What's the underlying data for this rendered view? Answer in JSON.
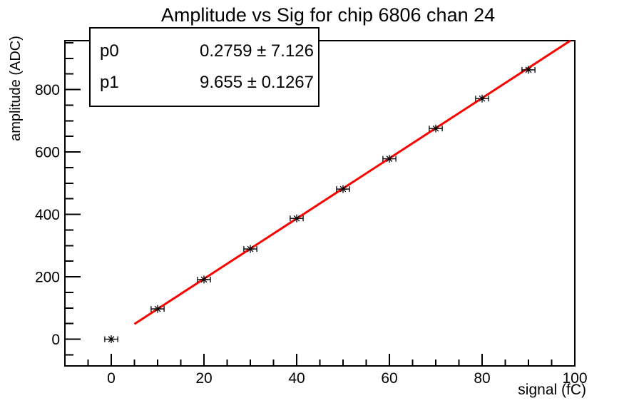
{
  "chart_data": {
    "type": "scatter",
    "title": "Amplitude vs Sig for chip 6806 chan 24",
    "xlabel": "signal (fC)",
    "ylabel": "amplitude (ADC)",
    "x": [
      0,
      10,
      20,
      30,
      40,
      50,
      60,
      70,
      80,
      90
    ],
    "y": [
      0,
      97,
      191,
      289,
      387,
      481,
      578,
      675,
      771,
      863
    ],
    "x_err": 1.4,
    "marker": "asterisk-with-x-error-bars",
    "marker_color": "#000000",
    "fit": {
      "model": "linear y = p0 + p1*x",
      "p0": 0.2759,
      "p1": 9.655,
      "range": [
        5,
        100
      ],
      "color": "#ff0000"
    },
    "stats": {
      "rows": [
        {
          "param": "p0",
          "value": "0.2759 ± 7.126"
        },
        {
          "param": "p1",
          "value": "9.655 ± 0.1267"
        }
      ]
    },
    "xlim": [
      -10,
      100
    ],
    "ylim": [
      -85.7,
      956.6
    ],
    "x_major_ticks": [
      0,
      20,
      40,
      60,
      80,
      100
    ],
    "x_minor_step": 5,
    "y_major_ticks": [
      0,
      200,
      400,
      600,
      800
    ],
    "y_minor_step": 50,
    "grid": false,
    "legend": false,
    "background": "#ffffff",
    "axis_color": "#000000"
  }
}
